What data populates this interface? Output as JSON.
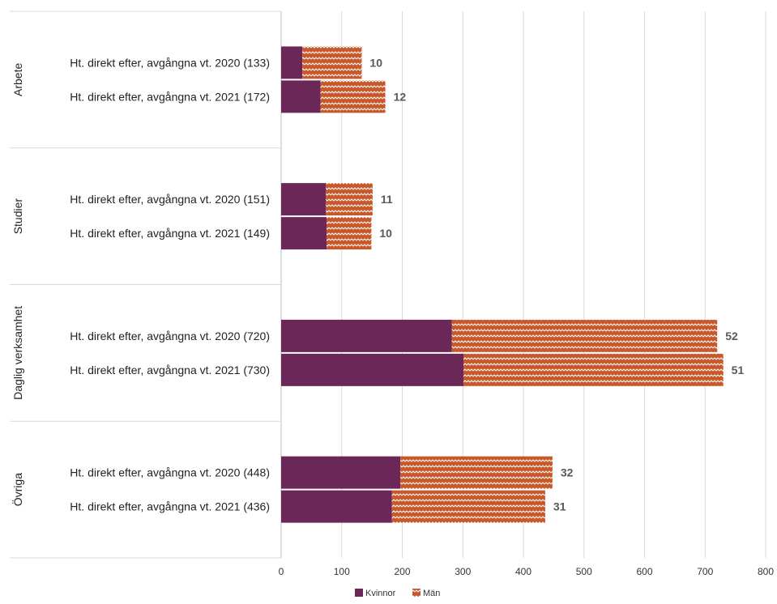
{
  "chart_data": {
    "type": "bar",
    "orientation": "horizontal",
    "stacked": true,
    "x_axis": {
      "min": 0,
      "max": 800,
      "ticks": [
        0,
        100,
        200,
        300,
        400,
        500,
        600,
        700,
        800
      ]
    },
    "grid": true,
    "legend_position": "bottom",
    "series": [
      {
        "name": "Kvinnor",
        "color": "#6b2757",
        "pattern": "solid"
      },
      {
        "name": "Män",
        "color": "#c8582a",
        "pattern": "zigzag"
      }
    ],
    "groups": [
      {
        "name": "Arbete",
        "bars": [
          {
            "label": "Ht. direkt efter, avgångna vt. 2020 (133)",
            "values": [
              35,
              98
            ],
            "data_label": "10"
          },
          {
            "label": "Ht. direkt efter, avgångna vt. 2021 (172)",
            "values": [
              65,
              107
            ],
            "data_label": "12"
          }
        ]
      },
      {
        "name": "Studier",
        "bars": [
          {
            "label": "Ht. direkt efter, avgångna vt. 2020 (151)",
            "values": [
              74,
              77
            ],
            "data_label": "11"
          },
          {
            "label": "Ht. direkt efter, avgångna vt. 2021 (149)",
            "values": [
              75,
              74
            ],
            "data_label": "10"
          }
        ]
      },
      {
        "name": "Daglig verksamhet",
        "bars": [
          {
            "label": "Ht. direkt efter, avgångna vt. 2020 (720)",
            "values": [
              282,
              438
            ],
            "data_label": "52"
          },
          {
            "label": "Ht. direkt efter, avgångna vt. 2021 (730)",
            "values": [
              301,
              429
            ],
            "data_label": "51"
          }
        ]
      },
      {
        "name": "Övriga",
        "bars": [
          {
            "label": "Ht. direkt efter, avgångna vt. 2020 (448)",
            "values": [
              197,
              251
            ],
            "data_label": "32"
          },
          {
            "label": "Ht. direkt efter, avgångna vt. 2021 (436)",
            "values": [
              183,
              253
            ],
            "data_label": "31"
          }
        ]
      }
    ]
  }
}
